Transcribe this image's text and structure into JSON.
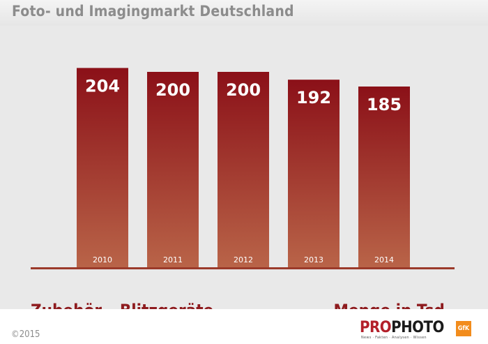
{
  "header": {
    "title": "Foto- und Imagingmarkt Deutschland"
  },
  "chart_data": {
    "type": "bar",
    "categories": [
      "2010",
      "2011",
      "2012",
      "2013",
      "2014"
    ],
    "values": [
      204,
      200,
      200,
      192,
      185
    ],
    "title": "Foto- und Imagingmarkt Deutschland",
    "xlabel": "Zubehör – Blitzgeräte",
    "ylabel": "Menge in Tsd.",
    "grid": false,
    "colors": {
      "bar_top": "#8b1018",
      "bar_bottom": "#b96448",
      "baseline": "#9b3a2a",
      "value_label": "#ffffff",
      "category_label": "#ffffff"
    }
  },
  "captions": {
    "left": "Zubehör – Blitzgeräte",
    "right": "Menge in Tsd."
  },
  "footer": {
    "copyright": "©2015",
    "logo_pro": "PRO",
    "logo_photo": "PHOTO",
    "logo_tagline": "News · Fakten · Analysen · Wissen",
    "gfk": "GfK"
  }
}
